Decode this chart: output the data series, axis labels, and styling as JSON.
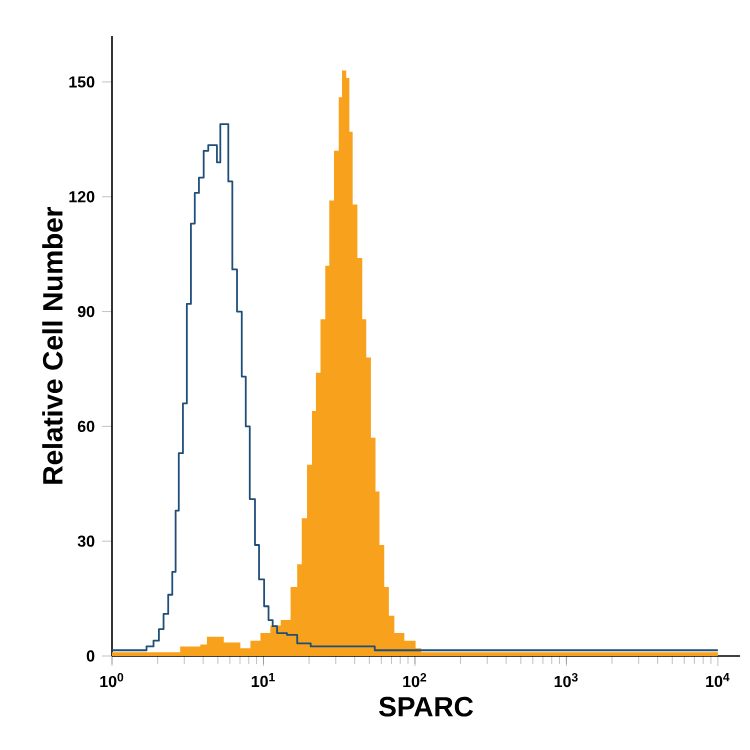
{
  "chart_data": {
    "type": "step",
    "xlabel": "SPARC",
    "ylabel": "Relative Cell Number",
    "log": "x",
    "xlim": [
      1,
      14000
    ],
    "ylim": [
      0,
      162
    ],
    "xticks": [
      {
        "value": 1,
        "label": "10$^{0}$"
      },
      {
        "value": 10,
        "label": "10$^{1}$"
      },
      {
        "value": 100,
        "label": "10$^{2}$"
      },
      {
        "value": 1000,
        "label": "10$^{3}$"
      },
      {
        "value": 10000,
        "label": "10$^{4}$"
      }
    ],
    "yticks": [
      0,
      30,
      60,
      90,
      120,
      150
    ],
    "series": [
      {
        "type": "area",
        "color": "#f7a11c",
        "x": [
          1,
          2.82,
          3.83,
          4.23,
          5.47,
          7.04,
          8.2,
          9.55,
          11.1,
          13.0,
          15.1,
          16.7,
          17.9,
          19.4,
          20.9,
          22.2,
          23.8,
          25.6,
          27.2,
          29.2,
          31.4,
          33.0,
          35.2,
          36.9,
          38.8,
          41.7,
          44.9,
          47.7,
          51.2,
          54.9,
          58.3,
          62.7,
          67.3,
          73.1,
          85.1,
          101,
          110,
          10000
        ],
        "values": [
          1,
          2.5,
          3,
          5,
          3.5,
          2,
          4,
          6,
          8,
          9.4,
          18,
          24,
          36,
          50,
          64,
          74,
          88,
          102,
          119,
          132,
          146,
          153,
          151,
          137,
          118,
          104,
          88,
          78,
          57,
          43,
          29,
          18,
          10.5,
          6,
          4,
          2,
          1,
          1
        ]
      },
      {
        "color": "#1f4e79",
        "x": [
          1,
          1.69,
          1.88,
          2.04,
          2.19,
          2.35,
          2.5,
          2.63,
          2.76,
          2.94,
          3.12,
          3.32,
          3.52,
          3.75,
          4.03,
          4.32,
          4.93,
          5.19,
          5.86,
          6.23,
          6.69,
          7.19,
          7.64,
          8.12,
          8.79,
          9.35,
          10.1,
          10.8,
          11.5,
          12.3,
          14.3,
          16.7,
          20.5,
          54.3,
          10000
        ],
        "values": [
          1.5,
          2.5,
          4,
          7,
          11,
          16,
          22,
          38,
          53,
          66,
          92,
          113,
          121,
          125,
          132,
          133.5,
          129,
          139,
          124,
          101,
          90,
          73,
          60,
          41,
          29,
          20,
          13,
          9.4,
          7.8,
          6,
          5.5,
          3.3,
          2.5,
          1.5,
          1.5
        ]
      }
    ]
  }
}
